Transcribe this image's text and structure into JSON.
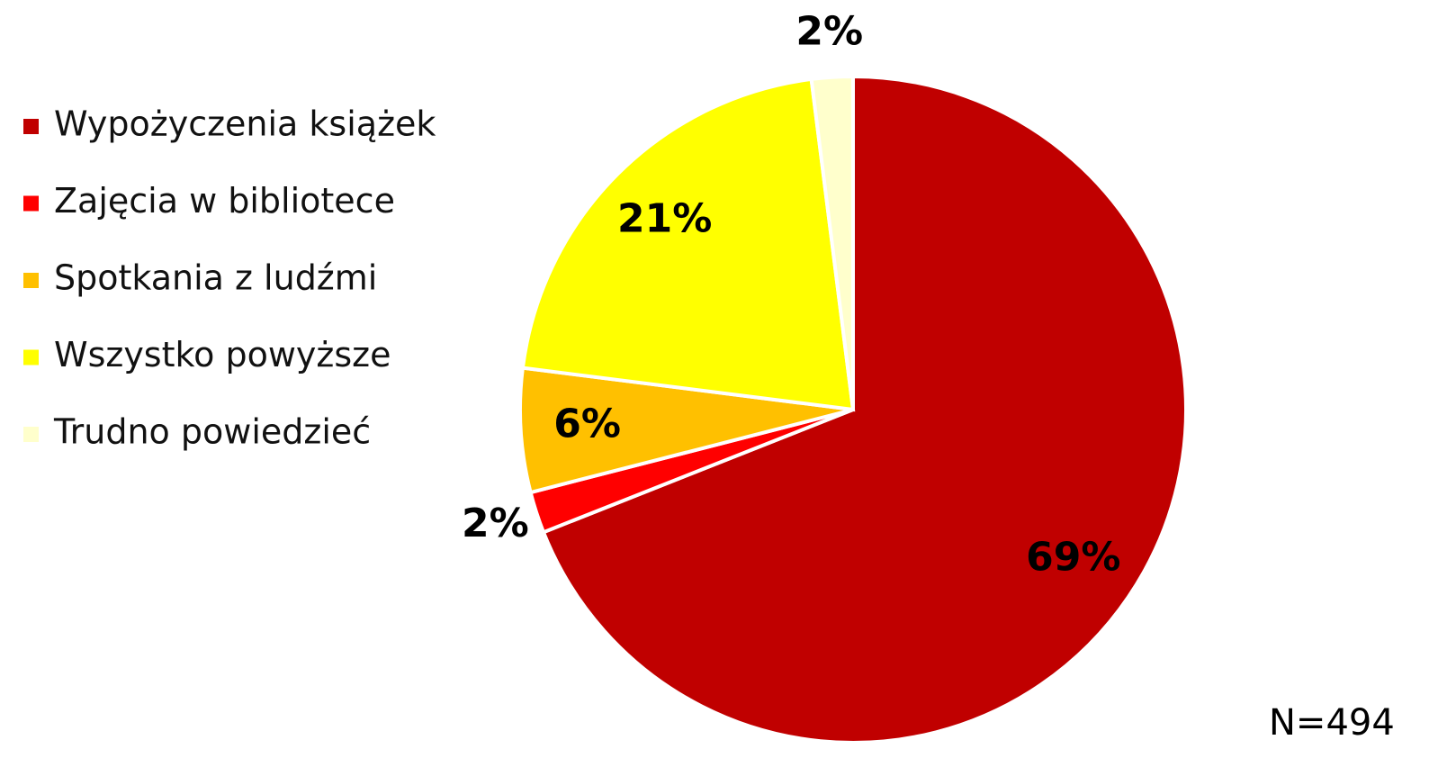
{
  "chart_data": {
    "type": "pie",
    "categories": [
      "Wypożyczenia książek",
      "Zajęcia w bibliotece",
      "Spotkania z ludźmi",
      "Wszystko powyższe",
      "Trudno powiedzieć"
    ],
    "values": [
      69,
      2,
      6,
      21,
      2
    ],
    "value_labels": [
      "69%",
      "2%",
      "6%",
      "21%",
      "2%"
    ],
    "colors": [
      "#c00000",
      "#ff0000",
      "#ffc000",
      "#ffff00",
      "#ffffcc"
    ],
    "legend": "left",
    "annotation": "N=494"
  }
}
